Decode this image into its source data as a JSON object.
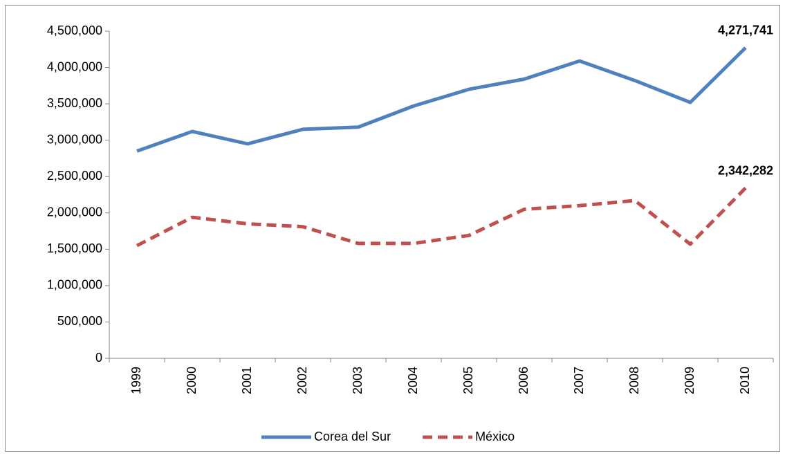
{
  "chart_data": {
    "type": "line",
    "categories": [
      "1999",
      "2000",
      "2001",
      "2002",
      "2003",
      "2004",
      "2005",
      "2006",
      "2007",
      "2008",
      "2009",
      "2010"
    ],
    "series": [
      {
        "name": "Corea del Sur",
        "color": "#4f81bd",
        "line_style": "solid",
        "values": [
          2850000,
          3120000,
          2950000,
          3150000,
          3180000,
          3470000,
          3700000,
          3840000,
          4090000,
          3820000,
          3520000,
          4271741
        ],
        "value_labels": [
          null,
          null,
          null,
          null,
          null,
          null,
          null,
          null,
          null,
          null,
          null,
          "4,271,741"
        ]
      },
      {
        "name": "México",
        "color": "#c0504d",
        "line_style": "dashed",
        "values": [
          1550000,
          1940000,
          1850000,
          1810000,
          1580000,
          1580000,
          1690000,
          2050000,
          2100000,
          2170000,
          1570000,
          2342282
        ],
        "value_labels": [
          null,
          null,
          null,
          null,
          null,
          null,
          null,
          null,
          null,
          null,
          null,
          "2,342,282"
        ]
      }
    ],
    "ylim": [
      0,
      4500000
    ],
    "yticks": [
      0,
      {
        "value": 500000,
        "label": "500,000"
      },
      {
        "value": 1000000,
        "label": "1,000,000"
      },
      {
        "value": 1500000,
        "label": "1,500,000"
      },
      {
        "value": 2000000,
        "label": "2,000,000"
      },
      {
        "value": 2500000,
        "label": "2,500,000"
      },
      {
        "value": 3000000,
        "label": "3,000,000"
      },
      {
        "value": 3500000,
        "label": "3,500,000"
      },
      {
        "value": 4000000,
        "label": "4,000,000"
      },
      {
        "value": 4500000,
        "label": "4,500,000"
      }
    ],
    "grid": false,
    "legend": "bottom"
  }
}
